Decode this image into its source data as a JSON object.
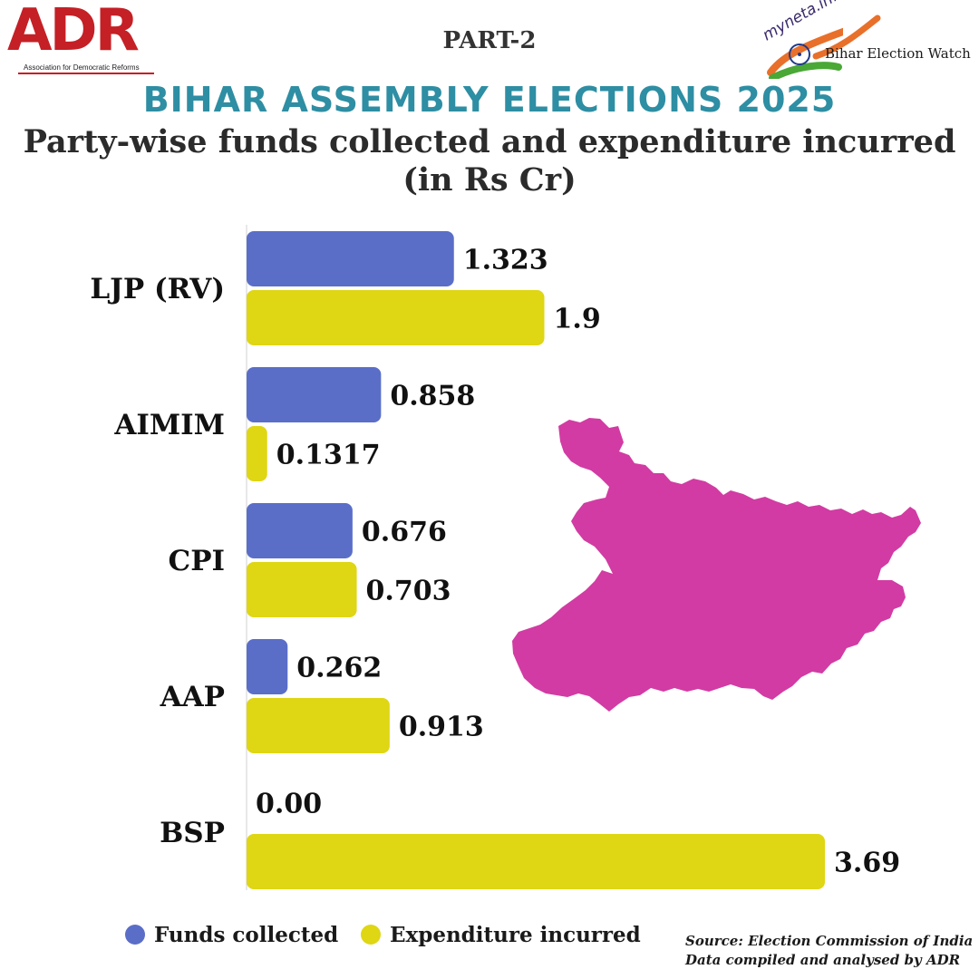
{
  "header": {
    "logo_left": {
      "wordmark": "ADR",
      "tagline": "Association for Democratic Reforms"
    },
    "part_label": "PART-2",
    "logo_right": {
      "brand": "myneta.info",
      "caption": "Bihar Election Watch"
    }
  },
  "title": "BIHAR ASSEMBLY ELECTIONS 2025",
  "subtitle_line1": "Party-wise funds collected and expenditure incurred",
  "subtitle_line2": "(in Rs Cr)",
  "chart_data": {
    "type": "bar",
    "orientation": "horizontal",
    "categories": [
      "LJP (RV)",
      "AIMIM",
      "CPI",
      "AAP",
      "BSP"
    ],
    "series": [
      {
        "name": "Funds collected",
        "values": [
          1.323,
          0.858,
          0.676,
          0.262,
          0.0
        ],
        "labels": [
          "1.323",
          "0.858",
          "0.676",
          "0.262",
          "0.00"
        ],
        "color": "#5a6ec8"
      },
      {
        "name": "Expenditure incurred",
        "values": [
          1.9,
          0.1317,
          0.703,
          0.913,
          3.69
        ],
        "labels": [
          "1.9",
          "0.1317",
          "0.703",
          "0.913",
          "3.69"
        ],
        "color": "#dfd614"
      }
    ],
    "xlim": [
      0,
      3.69
    ],
    "grid": false,
    "legend_position": "bottom-left"
  },
  "map": {
    "icon": "bihar-map",
    "color": "#d23ba3"
  },
  "source_line1": "Source: Election Commission of India",
  "source_line2": "Data compiled and analysed by ADR"
}
